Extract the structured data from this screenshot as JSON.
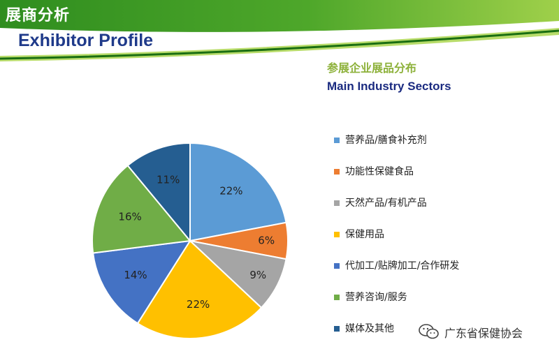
{
  "header": {
    "title_cn": "展商分析",
    "title_en": "Exhibitor Profile"
  },
  "colors": {
    "banner_dark": "#2f8d1f",
    "banner_light": "#9fd04a",
    "banner_stripe": "#1a6e12"
  },
  "chart_data": {
    "type": "pie",
    "title": "参展企业展品分布",
    "subtitle": "Main Industry Sectors",
    "data_label_format": "percent",
    "legend_position": "right",
    "slices": [
      {
        "label": "营养品/膳食补充剂",
        "value": 22,
        "color": "#5b9bd5"
      },
      {
        "label": "功能性保健食品",
        "value": 6,
        "color": "#ed7d31"
      },
      {
        "label": "天然产品/有机产品",
        "value": 9,
        "color": "#a5a5a5"
      },
      {
        "label": "保健用品",
        "value": 22,
        "color": "#ffc000"
      },
      {
        "label": "代加工/贴牌加工/合作研发",
        "value": 14,
        "color": "#4472c4"
      },
      {
        "label": "营养咨询/服务",
        "value": 16,
        "color": "#70ad47"
      },
      {
        "label": "媒体及其他",
        "value": 11,
        "color": "#255e91"
      }
    ]
  },
  "watermark": {
    "text": "广东省保健协会",
    "icon": "wechat-icon"
  }
}
